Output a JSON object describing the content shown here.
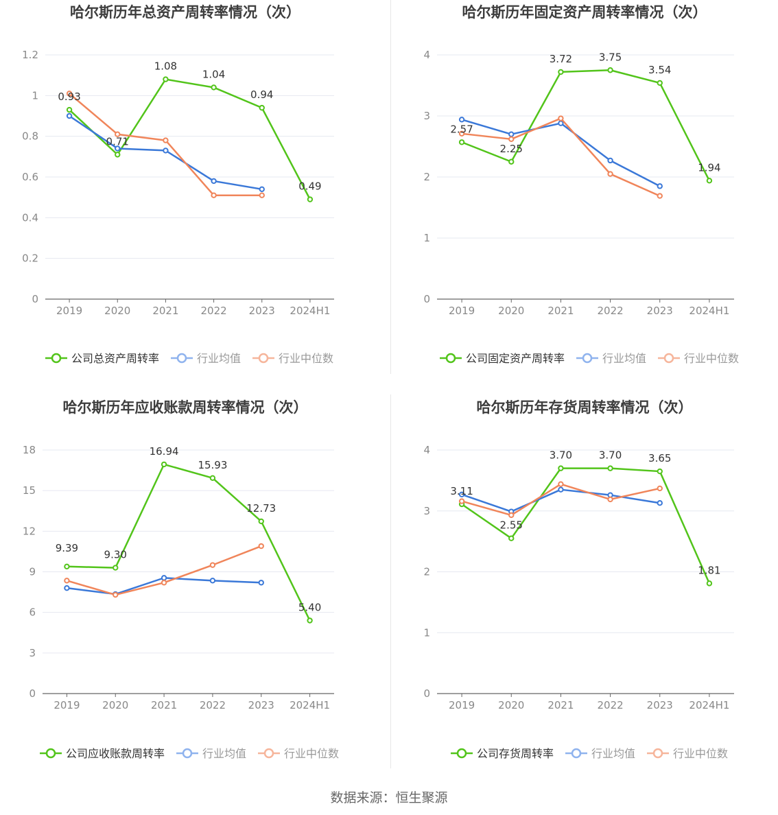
{
  "footer": {
    "source": "数据来源：恒生聚源"
  },
  "colors": {
    "company": "#52c41a",
    "avg": "#3a78d8",
    "median": "#f0855a",
    "axis": "#666666",
    "grid": "#e6e8f0",
    "label": "#333333",
    "title": "#3d3d3d"
  },
  "chart_data": [
    {
      "type": "line",
      "title": "哈尔斯历年总资产周转率情况（次）",
      "categories": [
        "2019",
        "2020",
        "2021",
        "2022",
        "2023",
        "2024H1"
      ],
      "ylim": [
        0,
        1.2
      ],
      "yticks": [
        0,
        0.2,
        0.4,
        0.6,
        0.8,
        1,
        1.2
      ],
      "ytick_labels": [
        "0",
        "0.2",
        "0.4",
        "0.6",
        "0.8",
        "1",
        "1.2"
      ],
      "series": [
        {
          "name": "公司总资产周转率",
          "role": "company",
          "values": [
            0.93,
            0.71,
            1.08,
            1.04,
            0.94,
            0.49
          ],
          "labels": [
            "0.93",
            "0.71",
            "1.08",
            "1.04",
            "0.94",
            "0.49"
          ]
        },
        {
          "name": "行业均值",
          "role": "avg",
          "values": [
            0.9,
            0.74,
            0.73,
            0.58,
            0.54,
            null
          ]
        },
        {
          "name": "行业中位数",
          "role": "median",
          "values": [
            1.01,
            0.81,
            0.78,
            0.51,
            0.51,
            null
          ]
        }
      ]
    },
    {
      "type": "line",
      "title": "哈尔斯历年固定资产周转率情况（次）",
      "categories": [
        "2019",
        "2020",
        "2021",
        "2022",
        "2023",
        "2024H1"
      ],
      "ylim": [
        0,
        4
      ],
      "yticks": [
        0,
        1,
        2,
        3,
        4
      ],
      "ytick_labels": [
        "0",
        "1",
        "2",
        "3",
        "4"
      ],
      "series": [
        {
          "name": "公司固定资产周转率",
          "role": "company",
          "values": [
            2.57,
            2.25,
            3.72,
            3.75,
            3.54,
            1.94
          ],
          "labels": [
            "2.57",
            "2.25",
            "3.72",
            "3.75",
            "3.54",
            "1.94"
          ]
        },
        {
          "name": "行业均值",
          "role": "avg",
          "values": [
            2.94,
            2.7,
            2.88,
            2.27,
            1.85,
            null
          ]
        },
        {
          "name": "行业中位数",
          "role": "median",
          "values": [
            2.71,
            2.62,
            2.96,
            2.05,
            1.69,
            null
          ]
        }
      ]
    },
    {
      "type": "line",
      "title": "哈尔斯历年应收账款周转率情况（次）",
      "categories": [
        "2019",
        "2020",
        "2021",
        "2022",
        "2023",
        "2024H1"
      ],
      "ylim": [
        0,
        18
      ],
      "yticks": [
        0,
        3,
        6,
        9,
        12,
        15,
        18
      ],
      "ytick_labels": [
        "0",
        "3",
        "6",
        "9",
        "12",
        "15",
        "18"
      ],
      "series": [
        {
          "name": "公司应收账款周转率",
          "role": "company",
          "values": [
            9.39,
            9.3,
            16.94,
            15.93,
            12.73,
            5.4
          ],
          "labels": [
            "9.39",
            "9.30",
            "16.94",
            "15.93",
            "12.73",
            "5.40"
          ]
        },
        {
          "name": "行业均值",
          "role": "avg",
          "values": [
            7.8,
            7.35,
            8.55,
            8.35,
            8.2,
            null
          ]
        },
        {
          "name": "行业中位数",
          "role": "median",
          "values": [
            8.35,
            7.3,
            8.2,
            9.5,
            10.9,
            null
          ]
        }
      ]
    },
    {
      "type": "line",
      "title": "哈尔斯历年存货周转率情况（次）",
      "categories": [
        "2019",
        "2020",
        "2021",
        "2022",
        "2023",
        "2024H1"
      ],
      "ylim": [
        0,
        4
      ],
      "yticks": [
        0,
        1,
        2,
        3,
        4
      ],
      "ytick_labels": [
        "0",
        "1",
        "2",
        "3",
        "4"
      ],
      "series": [
        {
          "name": "公司存货周转率",
          "role": "company",
          "values": [
            3.11,
            2.55,
            3.7,
            3.7,
            3.65,
            1.81
          ],
          "labels": [
            "3.11",
            "2.55",
            "3.70",
            "3.70",
            "3.65",
            "1.81"
          ]
        },
        {
          "name": "行业均值",
          "role": "avg",
          "values": [
            3.27,
            2.99,
            3.35,
            3.26,
            3.13,
            null
          ]
        },
        {
          "name": "行业中位数",
          "role": "median",
          "values": [
            3.16,
            2.93,
            3.44,
            3.19,
            3.37,
            null
          ]
        }
      ]
    }
  ]
}
